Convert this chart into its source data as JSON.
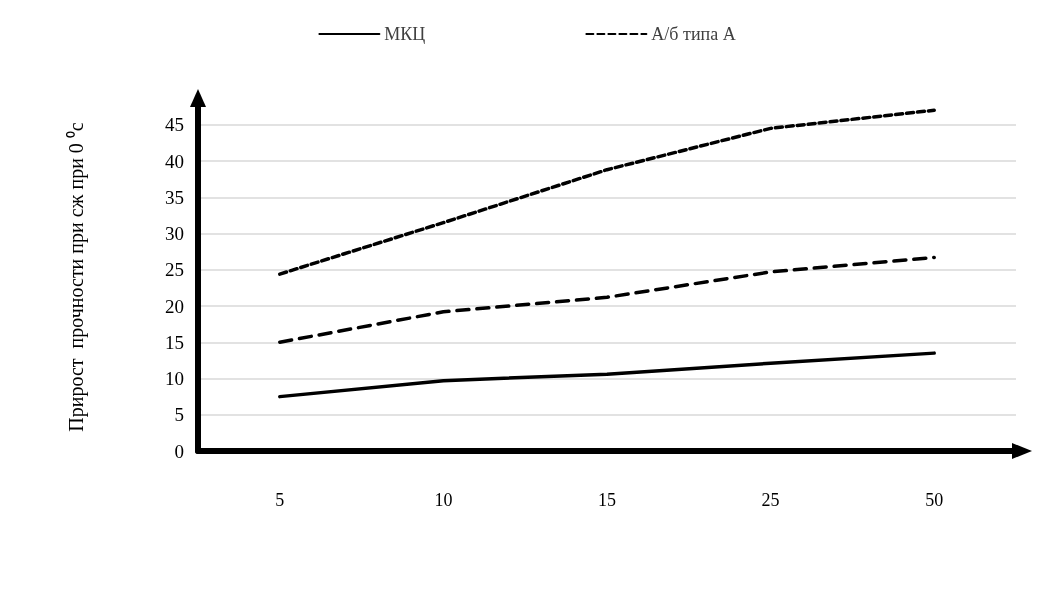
{
  "chart_data": {
    "type": "line",
    "ylabel": "Прирост  прочности при сж при 0 ⁰с",
    "categories": [
      "5",
      "10",
      "15",
      "25",
      "50"
    ],
    "series": [
      {
        "name": "МКЦ",
        "color": "#000000",
        "line_style": "solid",
        "values": [
          7.5,
          9.7,
          10.6,
          12.1,
          13.5
        ]
      },
      {
        "color": "#000000",
        "line_style": "dashed",
        "values": [
          15,
          19.2,
          21.2,
          24.7,
          26.7
        ]
      },
      {
        "name": "А/б типа А",
        "color": "#000000",
        "line_style": "dotted",
        "values": [
          24.4,
          31.5,
          38.8,
          44.5,
          47
        ]
      }
    ],
    "ylim": [
      0,
      48
    ],
    "yticks": [
      0,
      5,
      10,
      15,
      20,
      25,
      30,
      35,
      40,
      45
    ],
    "grid": "y",
    "legend": "top",
    "marker": "none"
  }
}
